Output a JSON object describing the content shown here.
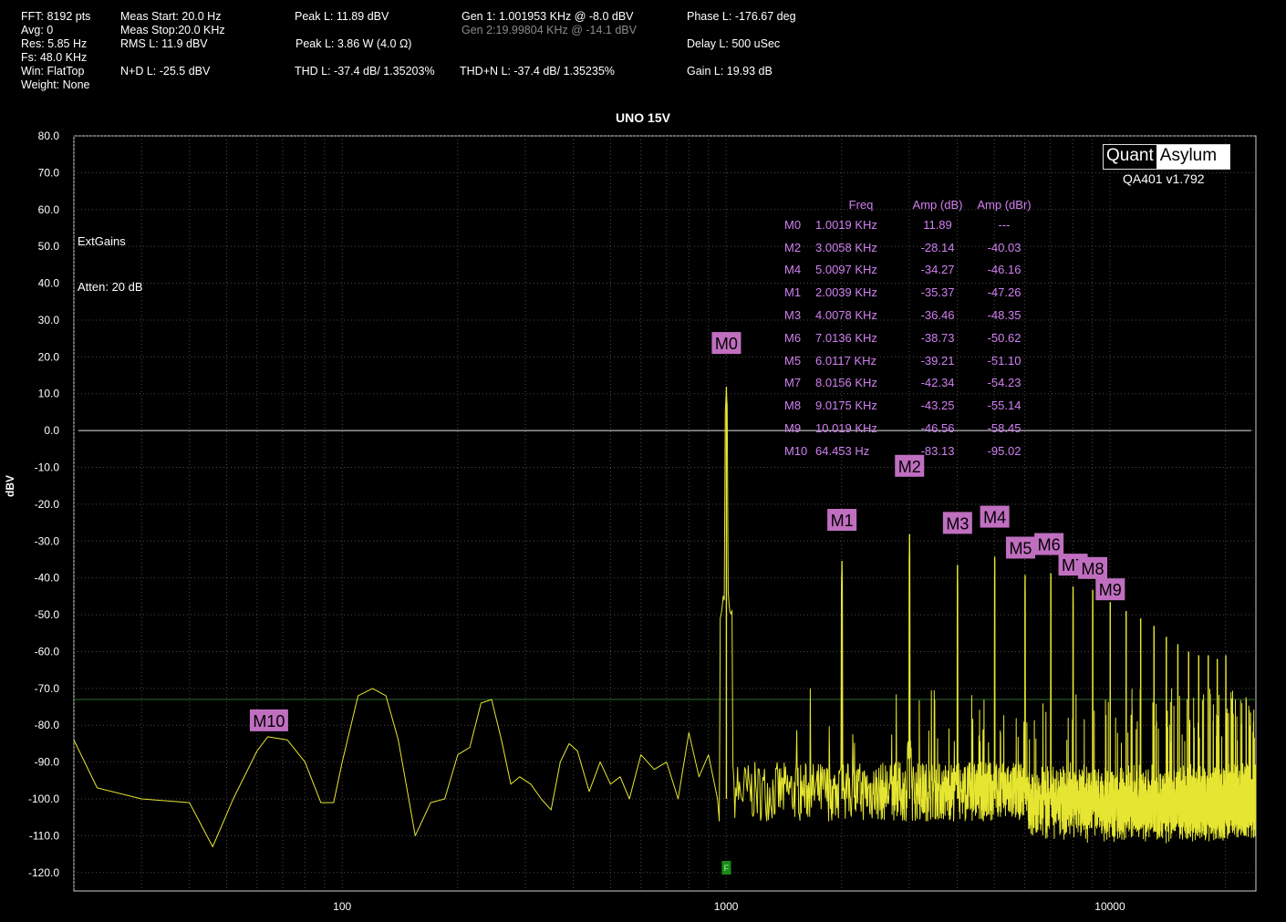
{
  "header": {
    "col1": [
      "FFT: 8192 pts",
      "Avg: 0",
      "Res: 5.85 Hz",
      "Fs: 48.0 KHz",
      "Win: FlatTop",
      "Weight: None"
    ],
    "meas_start": "Meas Start: 20.0 Hz",
    "meas_stop": "Meas Stop:20.0 KHz",
    "rms": "RMS L: 11.9 dBV",
    "nd": "N+D L: -25.5 dBV",
    "peak1": "Peak L: 11.89 dBV",
    "peak2": "Peak L: 3.86 W (4.0 Ω)",
    "thd": "THD L: -37.4 dB/ 1.35203%",
    "gen1": "Gen 1: 1.001953 KHz @ -8.0  dBV",
    "gen2": "Gen 2:19.99804 KHz @ -14.1  dBV",
    "thdn": "THD+N L: -37.4 dB/ 1.35235%",
    "phase": "Phase L: -176.67 deg",
    "delay": "Delay L: 500 uSec",
    "gain": "Gain L: 19.93 dB"
  },
  "logo": {
    "left": "Quant",
    "right": "Asylum",
    "version": "QA401 v1.792"
  },
  "notes": {
    "ext": "ExtGains",
    "atten": "Atten: 20 dB"
  },
  "marker_table": {
    "headers": [
      "",
      "Freq",
      "Amp (dB)",
      "Amp (dBr)"
    ],
    "rows": [
      [
        "M0",
        "1.0019 KHz",
        "11.89",
        "---"
      ],
      [
        "M2",
        "3.0058 KHz",
        "-28.14",
        "-40.03"
      ],
      [
        "M4",
        "5.0097 KHz",
        "-34.27",
        "-46.16"
      ],
      [
        "M1",
        "2.0039 KHz",
        "-35.37",
        "-47.26"
      ],
      [
        "M3",
        "4.0078 KHz",
        "-36.46",
        "-48.35"
      ],
      [
        "M6",
        "7.0136 KHz",
        "-38.73",
        "-50.62"
      ],
      [
        "M5",
        "6.0117 KHz",
        "-39.21",
        "-51.10"
      ],
      [
        "M7",
        "8.0156 KHz",
        "-42.34",
        "-54.23"
      ],
      [
        "M8",
        "9.0175 KHz",
        "-43.25",
        "-55.14"
      ],
      [
        "M9",
        "10.019 KHz",
        "-46.56",
        "-58.45"
      ],
      [
        "M10",
        "64.453 Hz",
        "-83.13",
        "-95.02"
      ]
    ]
  },
  "chart_data": {
    "type": "line",
    "title": "UNO 15V",
    "xlabel": "",
    "ylabel": "dBV",
    "xscale": "log",
    "xlim": [
      20,
      24000
    ],
    "ylim": [
      -125,
      80
    ],
    "yticks": [
      "80.0",
      "70.0",
      "60.0",
      "50.0",
      "40.0",
      "30.0",
      "20.0",
      "10.0",
      "0.0",
      "-10.0",
      "-20.0",
      "-30.0",
      "-40.0",
      "-50.0",
      "-60.0",
      "-70.0",
      "-80.0",
      "-90.0",
      "-100.0",
      "-110.0",
      "-120.0"
    ],
    "yvalues": [
      80,
      70,
      60,
      50,
      40,
      30,
      20,
      10,
      0,
      -10,
      -20,
      -30,
      -40,
      -50,
      -60,
      -70,
      -80,
      -90,
      -100,
      -110,
      -120
    ],
    "xticks": [
      {
        "v": 100,
        "label": "100"
      },
      {
        "v": 1000,
        "label": "1000"
      },
      {
        "v": 10000,
        "label": "10000"
      }
    ],
    "reference_line": 0,
    "threshold_line": -73,
    "series_color": "#e6e632",
    "harmonics": [
      {
        "f": 1001.9,
        "db": 11.89
      },
      {
        "f": 2003.9,
        "db": -35.37
      },
      {
        "f": 3005.8,
        "db": -28.14
      },
      {
        "f": 4007.8,
        "db": -36.46
      },
      {
        "f": 5009.7,
        "db": -34.27
      },
      {
        "f": 6011.7,
        "db": -39.21
      },
      {
        "f": 7013.6,
        "db": -38.73
      },
      {
        "f": 8015.6,
        "db": -42.34
      },
      {
        "f": 9017.5,
        "db": -43.25
      },
      {
        "f": 10019,
        "db": -46.56
      },
      {
        "f": 11021,
        "db": -49
      },
      {
        "f": 12023,
        "db": -51
      },
      {
        "f": 13025,
        "db": -53
      },
      {
        "f": 14027,
        "db": -56
      },
      {
        "f": 15029,
        "db": -58
      },
      {
        "f": 16031,
        "db": -60
      },
      {
        "f": 17033,
        "db": -61
      },
      {
        "f": 18035,
        "db": -61
      },
      {
        "f": 19037,
        "db": -62
      },
      {
        "f": 20039,
        "db": -61
      }
    ],
    "noise_floor": [
      [
        20,
        -84
      ],
      [
        23,
        -97
      ],
      [
        30,
        -100
      ],
      [
        40,
        -101
      ],
      [
        46,
        -113
      ],
      [
        52,
        -100
      ],
      [
        60,
        -87
      ],
      [
        64,
        -83.13
      ],
      [
        72,
        -84
      ],
      [
        80,
        -90
      ],
      [
        88,
        -101
      ],
      [
        95,
        -101
      ],
      [
        100,
        -90
      ],
      [
        110,
        -72
      ],
      [
        120,
        -70
      ],
      [
        130,
        -72
      ],
      [
        140,
        -84
      ],
      [
        155,
        -110
      ],
      [
        170,
        -101
      ],
      [
        185,
        -100
      ],
      [
        200,
        -88
      ],
      [
        215,
        -86
      ],
      [
        230,
        -74
      ],
      [
        245,
        -73
      ],
      [
        260,
        -84
      ],
      [
        275,
        -96
      ],
      [
        290,
        -94
      ],
      [
        310,
        -96
      ],
      [
        330,
        -100
      ],
      [
        350,
        -103
      ],
      [
        370,
        -90
      ],
      [
        390,
        -85
      ],
      [
        410,
        -87
      ],
      [
        440,
        -98
      ],
      [
        470,
        -90
      ],
      [
        500,
        -96
      ],
      [
        530,
        -94
      ],
      [
        560,
        -100
      ],
      [
        600,
        -88
      ],
      [
        650,
        -92
      ],
      [
        700,
        -90
      ],
      [
        750,
        -100
      ],
      [
        800,
        -82
      ],
      [
        850,
        -94
      ],
      [
        900,
        -88
      ],
      [
        950,
        -100
      ]
    ],
    "markers": [
      {
        "label": "M0",
        "f": 1001.9,
        "db": 11.89
      },
      {
        "label": "M1",
        "f": 2003.9,
        "db": -35.37
      },
      {
        "label": "M2",
        "f": 3005.8,
        "db": -28.14
      },
      {
        "label": "M3",
        "f": 4007.8,
        "db": -36.46
      },
      {
        "label": "M4",
        "f": 5009.7,
        "db": -34.27
      },
      {
        "label": "M5",
        "f": 6011.7,
        "db": -39.21
      },
      {
        "label": "M6",
        "f": 7013.6,
        "db": -38.73
      },
      {
        "label": "M7",
        "f": 8015.6,
        "db": -42.34
      },
      {
        "label": "M8",
        "f": 9017.5,
        "db": -43.25
      },
      {
        "label": "M9",
        "f": 10019,
        "db": -46.56
      },
      {
        "label": "M10",
        "f": 64.453,
        "db": -83.13
      }
    ],
    "marker_color": "#c06fc0",
    "fundamental_flag": {
      "label": "F",
      "f": 1001.9,
      "color": "#1a8a1a"
    },
    "grid": true
  }
}
